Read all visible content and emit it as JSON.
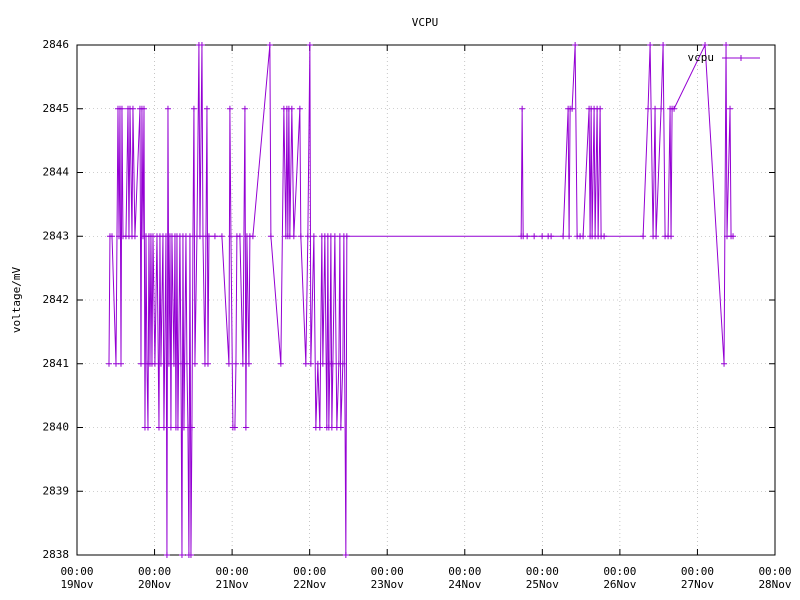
{
  "chart_data": {
    "type": "line",
    "title": "VCPU",
    "ylabel": "voltage/mV",
    "grid": true,
    "legend": "top-right",
    "xlim": [
      "19Nov 00:00",
      "28Nov 00:00"
    ],
    "xticks": [
      {
        "value": "19Nov 00:00",
        "label": [
          "00:00",
          "19Nov"
        ]
      },
      {
        "value": "20Nov 00:00",
        "label": [
          "00:00",
          "20Nov"
        ]
      },
      {
        "value": "21Nov 00:00",
        "label": [
          "00:00",
          "21Nov"
        ]
      },
      {
        "value": "22Nov 00:00",
        "label": [
          "00:00",
          "22Nov"
        ]
      },
      {
        "value": "23Nov 00:00",
        "label": [
          "00:00",
          "23Nov"
        ]
      },
      {
        "value": "24Nov 00:00",
        "label": [
          "00:00",
          "24Nov"
        ]
      },
      {
        "value": "25Nov 00:00",
        "label": [
          "00:00",
          "25Nov"
        ]
      },
      {
        "value": "26Nov 00:00",
        "label": [
          "00:00",
          "26Nov"
        ]
      },
      {
        "value": "27Nov 00:00",
        "label": [
          "00:00",
          "27Nov"
        ]
      },
      {
        "value": "28Nov 00:00",
        "label": [
          "00:00",
          "28Nov"
        ]
      }
    ],
    "ylim": [
      2838,
      2846
    ],
    "yticks": [
      2838,
      2839,
      2840,
      2841,
      2842,
      2843,
      2844,
      2845,
      2846
    ],
    "x": [
      "19Nov 09:54",
      "19Nov 10:12",
      "19Nov 10:50",
      "19Nov 12:04",
      "19Nov 12:41",
      "19Nov 13:00",
      "19Nov 13:18",
      "19Nov 13:37",
      "19Nov 13:55",
      "19Nov 14:14",
      "19Nov 15:09",
      "19Nov 15:47",
      "19Nov 16:05",
      "19Nov 16:24",
      "19Nov 17:01",
      "19Nov 17:19",
      "19Nov 17:56",
      "19Nov 19:29",
      "19Nov 19:48",
      "19Nov 20:06",
      "19Nov 20:25",
      "19Nov 20:44",
      "19Nov 21:02",
      "19Nov 21:21",
      "19Nov 21:39",
      "19Nov 21:58",
      "19Nov 22:16",
      "19Nov 22:35",
      "19Nov 22:53",
      "19Nov 23:12",
      "19Nov 23:31",
      "20Nov 00:07",
      "20Nov 00:45",
      "20Nov 01:22",
      "20Nov 01:40",
      "20Nov 01:59",
      "20Nov 02:36",
      "20Nov 02:54",
      "20Nov 03:32",
      "20Nov 03:50",
      "20Nov 04:09",
      "20Nov 04:27",
      "20Nov 04:46",
      "20Nov 05:04",
      "20Nov 05:23",
      "20Nov 06:00",
      "20Nov 06:19",
      "20Nov 06:37",
      "20Nov 06:56",
      "20Nov 07:14",
      "20Nov 07:51",
      "20Nov 08:10",
      "20Nov 08:29",
      "20Nov 08:47",
      "20Nov 09:06",
      "20Nov 09:43",
      "20Nov 10:01",
      "20Nov 10:20",
      "20Nov 10:38",
      "20Nov 10:57",
      "20Nov 11:16",
      "20Nov 11:34",
      "20Nov 11:53",
      "20Nov 12:11",
      "20Nov 12:30",
      "20Nov 13:07",
      "20Nov 13:44",
      "20Nov 14:03",
      "20Nov 14:40",
      "20Nov 14:59",
      "20Nov 15:36",
      "20Nov 15:54",
      "20Nov 16:13",
      "20Nov 16:32",
      "20Nov 16:50",
      "20Nov 18:41",
      "20Nov 20:51",
      "20Nov 23:01",
      "20Nov 23:19",
      "20Nov 23:38",
      "21Nov 00:15",
      "21Nov 00:52",
      "21Nov 01:11",
      "21Nov 01:29",
      "21Nov 02:25",
      "21Nov 03:20",
      "21Nov 03:58",
      "21Nov 04:16",
      "21Nov 04:35",
      "21Nov 05:12",
      "21Nov 05:30",
      "21Nov 06:26",
      "21Nov 11:41",
      "21Nov 12:00",
      "21Nov 15:05",
      "21Nov 16:01",
      "21Nov 16:38",
      "21Nov 16:57",
      "21Nov 17:15",
      "21Nov 17:34",
      "21Nov 17:52",
      "21Nov 18:29",
      "21Nov 19:06",
      "21Nov 20:58",
      "21Nov 21:16",
      "21Nov 22:49",
      "21Nov 23:26",
      "22Nov 00:04",
      "22Nov 00:22",
      "22Nov 01:18",
      "22Nov 01:55",
      "22Nov 02:32",
      "22Nov 03:09",
      "22Nov 03:46",
      "22Nov 04:05",
      "22Nov 04:42",
      "22Nov 05:19",
      "22Nov 05:38",
      "22Nov 05:56",
      "22Nov 06:15",
      "22Nov 06:34",
      "22Nov 06:52",
      "22Nov 07:11",
      "22Nov 07:48",
      "22Nov 08:25",
      "22Nov 09:02",
      "22Nov 09:21",
      "22Nov 09:39",
      "22Nov 10:16",
      "22Nov 10:35",
      "22Nov 11:12",
      "22Nov 11:30",
      "24Nov 17:27",
      "24Nov 17:45",
      "24Nov 18:04",
      "24Nov 19:18",
      "24Nov 21:28",
      "24Nov 23:56",
      "25Nov 01:48",
      "25Nov 02:43",
      "25Nov 06:26",
      "25Nov 07:59",
      "25Nov 08:17",
      "25Nov 08:36",
      "25Nov 09:13",
      "25Nov 10:09",
      "25Nov 10:46",
      "25Nov 11:41",
      "25Nov 12:37",
      "25Nov 14:28",
      "25Nov 14:47",
      "25Nov 15:06",
      "25Nov 15:24",
      "25Nov 16:01",
      "25Nov 16:20",
      "25Nov 16:57",
      "25Nov 17:16",
      "25Nov 17:53",
      "25Nov 18:11",
      "25Nov 19:07",
      "26Nov 07:11",
      "26Nov 08:43",
      "26Nov 09:21",
      "26Nov 10:16",
      "26Nov 10:53",
      "26Nov 11:12",
      "26Nov 12:45",
      "26Nov 13:22",
      "26Nov 13:59",
      "26Nov 14:55",
      "26Nov 15:32",
      "26Nov 15:50",
      "26Nov 16:09",
      "26Nov 16:46",
      "27Nov 02:21",
      "27Nov 08:14",
      "27Nov 08:51",
      "27Nov 09:09",
      "27Nov 10:05",
      "27Nov 10:24",
      "27Nov 11:01"
    ],
    "series": [
      {
        "name": "vcpu",
        "color": "#9400d3",
        "values": [
          2841,
          2843,
          2843,
          2841,
          2845,
          2843,
          2845,
          2841,
          2845,
          2843,
          2843,
          2845,
          2843,
          2845,
          2843,
          2845,
          2843,
          2845,
          2841,
          2845,
          2843,
          2845,
          2840,
          2843,
          2841,
          2840,
          2843,
          2841,
          2843,
          2841,
          2843,
          2841,
          2843,
          2840,
          2843,
          2841,
          2843,
          2840,
          2843,
          2838,
          2845,
          2841,
          2843,
          2840,
          2843,
          2841,
          2843,
          2840,
          2843,
          2840,
          2843,
          2841,
          2838,
          2843,
          2840,
          2843,
          2841,
          2840,
          2838,
          2843,
          2838,
          2840,
          2843,
          2845,
          2841,
          2843,
          2846,
          2843,
          2846,
          2843,
          2841,
          2843,
          2845,
          2841,
          2843,
          2843,
          2843,
          2841,
          2845,
          2843,
          2840,
          2840,
          2841,
          2843,
          2843,
          2841,
          2845,
          2840,
          2843,
          2841,
          2843,
          2843,
          2846,
          2843,
          2841,
          2845,
          2843,
          2845,
          2843,
          2845,
          2843,
          2845,
          2843,
          2845,
          2843,
          2841,
          2843,
          2846,
          2841,
          2843,
          2840,
          2841,
          2840,
          2843,
          2841,
          2843,
          2840,
          2843,
          2840,
          2841,
          2843,
          2840,
          2841,
          2843,
          2840,
          2841,
          2843,
          2840,
          2841,
          2843,
          2838,
          2843,
          2843,
          2845,
          2843,
          2843,
          2843,
          2843,
          2843,
          2843,
          2843,
          2845,
          2843,
          2845,
          2845,
          2846,
          2843,
          2843,
          2843,
          2845,
          2843,
          2845,
          2843,
          2845,
          2843,
          2845,
          2843,
          2845,
          2843,
          2843,
          2843,
          2845,
          2846,
          2843,
          2845,
          2843,
          2845,
          2846,
          2843,
          2843,
          2845,
          2843,
          2845,
          2845,
          2846,
          2841,
          2846,
          2843,
          2845,
          2843,
          2843
        ]
      }
    ]
  }
}
